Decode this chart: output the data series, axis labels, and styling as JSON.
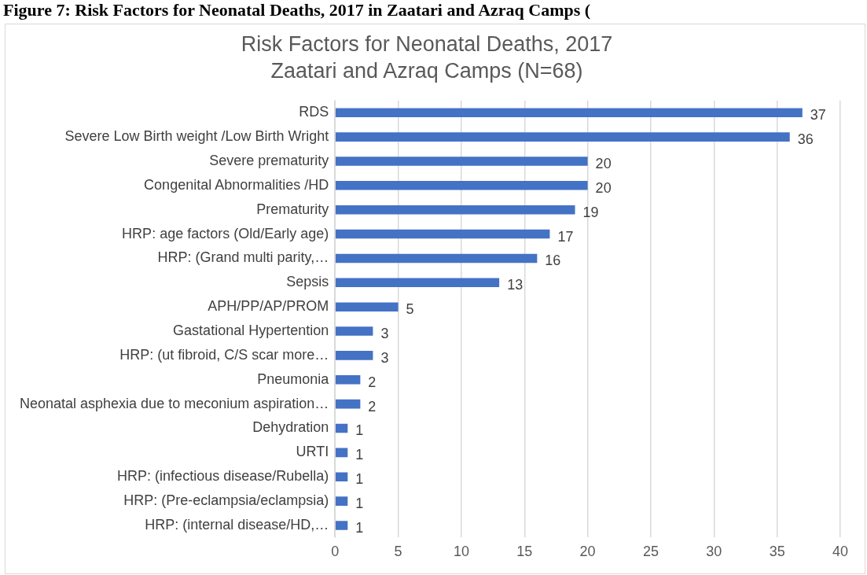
{
  "chart_data": {
    "type": "bar",
    "orientation": "horizontal",
    "title": "Risk Factors for Neonatal Deaths, 2017",
    "subtitle": "Zaatari and Azraq Camps (N=68)",
    "annotations": [
      "Figure 7: Risk Factors for Neonatal Deaths, 2017 in Zaatari and Azraq Camps ("
    ],
    "categories": [
      "RDS",
      "Severe Low Birth weight /Low Birth Wright",
      "Severe prematurity",
      "Congenital Abnormalities /HD",
      "Prematurity",
      "HRP: age factors (Old/Early age)",
      "HRP: (Grand multi parity,…",
      "Sepsis",
      "APH/PP/AP/PROM",
      "Gastational Hypertention",
      "HRP: (ut fibroid, C/S scar more…",
      "Pneumonia",
      "Neonatal asphexia due to meconium aspiration…",
      "Dehydration",
      "URTI",
      "HRP: (infectious disease/Rubella)",
      "HRP: (Pre-eclampsia/eclampsia)",
      "HRP: (internal disease/HD,…"
    ],
    "values": [
      37,
      36,
      20,
      20,
      19,
      17,
      16,
      13,
      5,
      3,
      3,
      2,
      2,
      1,
      1,
      1,
      1,
      1
    ],
    "color": "#4472c4",
    "xlim": [
      0,
      40
    ],
    "xticks": [
      0,
      5,
      10,
      15,
      20,
      25,
      30,
      35,
      40
    ],
    "grid": "x",
    "data_labels": true,
    "legend": false
  }
}
